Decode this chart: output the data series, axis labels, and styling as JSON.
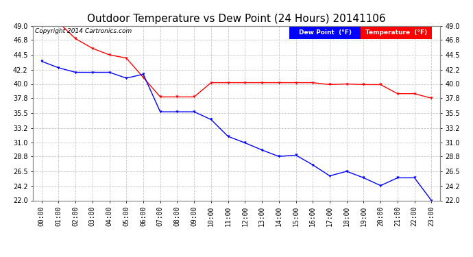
{
  "title": "Outdoor Temperature vs Dew Point (24 Hours) 20141106",
  "copyright": "Copyright 2014 Cartronics.com",
  "hours": [
    "00:00",
    "01:00",
    "02:00",
    "03:00",
    "04:00",
    "05:00",
    "06:00",
    "07:00",
    "08:00",
    "09:00",
    "10:00",
    "11:00",
    "12:00",
    "13:00",
    "14:00",
    "15:00",
    "16:00",
    "17:00",
    "18:00",
    "19:00",
    "20:00",
    "21:00",
    "22:00",
    "23:00"
  ],
  "temperature": [
    49.0,
    49.5,
    47.0,
    45.5,
    44.5,
    44.0,
    41.0,
    38.0,
    38.0,
    38.0,
    40.2,
    40.2,
    40.2,
    40.2,
    40.2,
    40.2,
    40.2,
    39.9,
    40.0,
    39.9,
    39.9,
    38.5,
    38.5,
    37.8
  ],
  "dew_point": [
    43.5,
    42.5,
    41.8,
    41.8,
    41.8,
    40.9,
    41.5,
    35.7,
    35.7,
    35.7,
    34.5,
    31.9,
    30.9,
    29.8,
    28.8,
    29.0,
    27.5,
    25.8,
    26.5,
    25.5,
    24.3,
    25.5,
    25.5,
    22.0
  ],
  "temp_color": "#ff0000",
  "dew_color": "#0000ff",
  "bg_color": "#ffffff",
  "plot_bg_color": "#ffffff",
  "grid_color": "#c8c8c8",
  "ylim": [
    22.0,
    49.0
  ],
  "yticks": [
    22.0,
    24.2,
    26.5,
    28.8,
    31.0,
    33.2,
    35.5,
    37.8,
    40.0,
    42.2,
    44.5,
    46.8,
    49.0
  ],
  "legend_dew_bg": "#0000ff",
  "legend_temp_bg": "#ff0000",
  "legend_text_color": "#ffffff",
  "title_fontsize": 11,
  "axis_fontsize": 7,
  "copyright_fontsize": 6.5
}
